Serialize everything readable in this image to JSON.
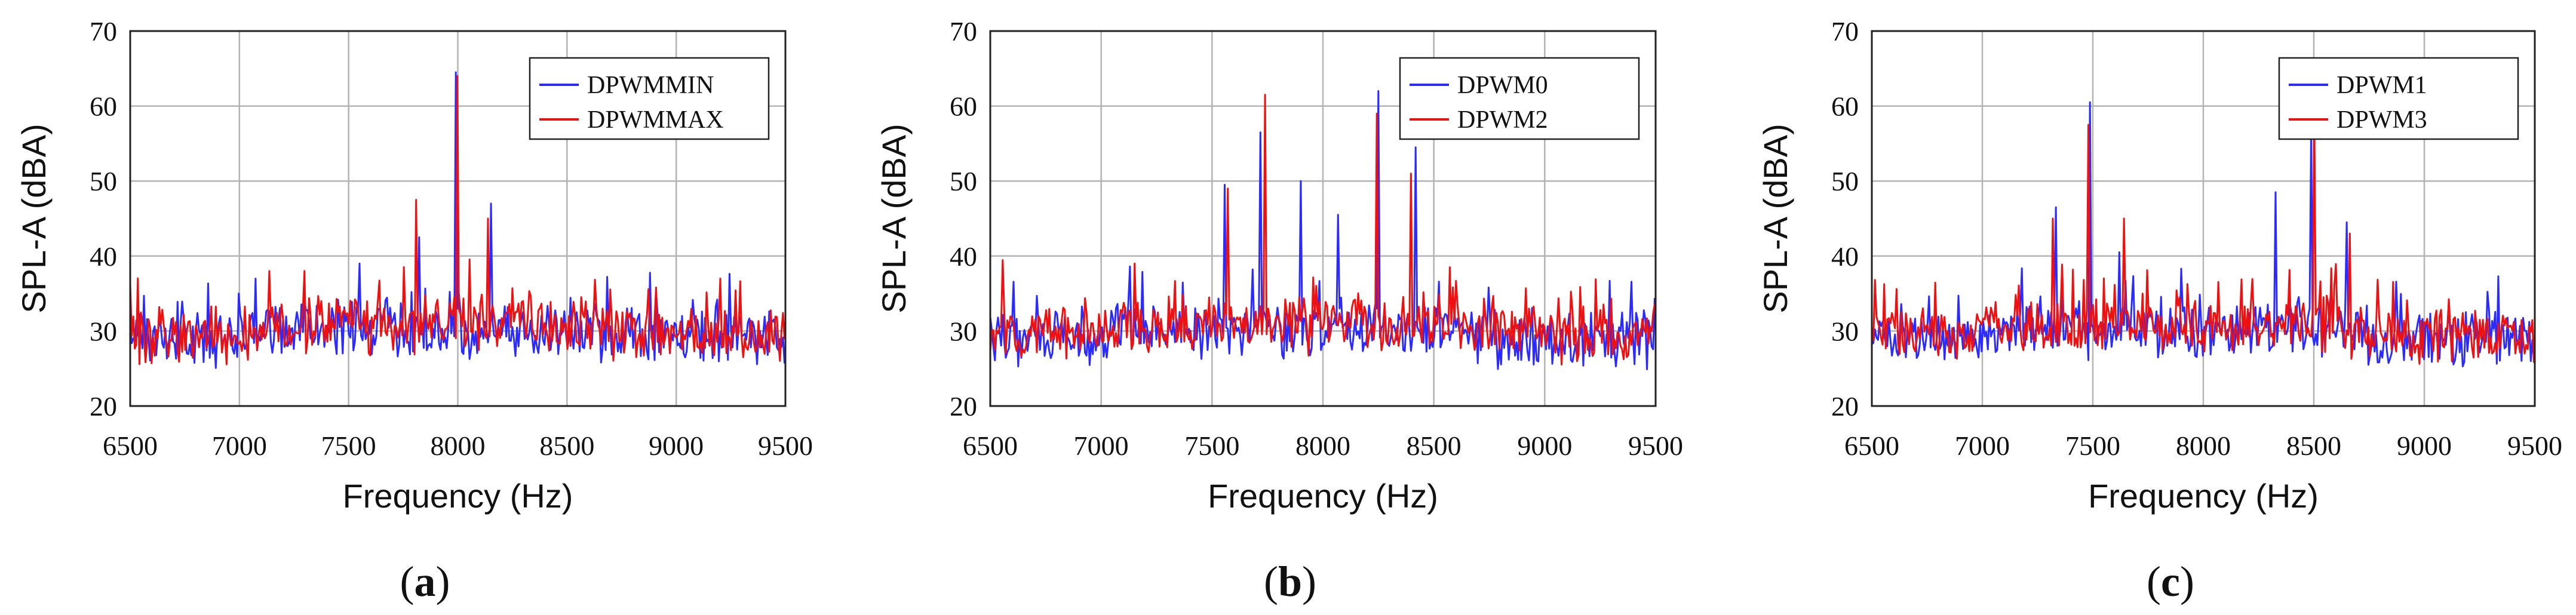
{
  "chart_data": [
    {
      "type": "line",
      "panel": "a",
      "caption_letter": "a",
      "xlabel": "Frequency (Hz)",
      "ylabel": "SPL-A (dBA)",
      "xlim": [
        6500,
        9500
      ],
      "ylim": [
        20,
        70
      ],
      "xticks": [
        6500,
        7000,
        7500,
        8000,
        8500,
        9000,
        9500
      ],
      "yticks": [
        20,
        30,
        40,
        50,
        60,
        70
      ],
      "grid": true,
      "legend_position": "top-right",
      "series": [
        {
          "name": "DPWMMIN",
          "color": "#2b2bff",
          "baseline": 29,
          "peaks": [
            [
              7000,
              35
            ],
            [
              7550,
              39
            ],
            [
              7820,
              42.5
            ],
            [
              7990,
              64.5
            ],
            [
              8150,
              47
            ]
          ]
        },
        {
          "name": "DPWMMAX",
          "color": "#ee1111",
          "baseline": 29.5,
          "peaks": [
            [
              7140,
              38
            ],
            [
              7300,
              38
            ],
            [
              7810,
              47.5
            ],
            [
              8000,
              64
            ],
            [
              8140,
              45
            ],
            [
              9200,
              37
            ]
          ]
        }
      ]
    },
    {
      "type": "line",
      "panel": "b",
      "caption_letter": "b",
      "xlabel": "Frequency (Hz)",
      "ylabel": "SPL-A (dBA)",
      "xlim": [
        6500,
        9500
      ],
      "ylim": [
        20,
        70
      ],
      "xticks": [
        6500,
        7000,
        7500,
        8000,
        8500,
        9000,
        9500
      ],
      "yticks": [
        20,
        30,
        40,
        50,
        60,
        70
      ],
      "grid": true,
      "legend_position": "top-right",
      "series": [
        {
          "name": "DPWM0",
          "color": "#2b2bff",
          "baseline": 29,
          "peaks": [
            [
              7560,
              49.5
            ],
            [
              7720,
              56.5
            ],
            [
              7900,
              50
            ],
            [
              8070,
              45.5
            ],
            [
              8250,
              62
            ],
            [
              8420,
              54.5
            ]
          ]
        },
        {
          "name": "DPWM2",
          "color": "#ee1111",
          "baseline": 29.5,
          "peaks": [
            [
              7150,
              39
            ],
            [
              7570,
              49
            ],
            [
              7740,
              61.5
            ],
            [
              8240,
              59
            ],
            [
              8400,
              51
            ],
            [
              8570,
              38.5
            ]
          ]
        }
      ]
    },
    {
      "type": "line",
      "panel": "c",
      "caption_letter": "c",
      "xlabel": "Frequency (Hz)",
      "ylabel": "SPL-A (dBA)",
      "xlim": [
        6500,
        9500
      ],
      "ylim": [
        20,
        70
      ],
      "xticks": [
        6500,
        7000,
        7500,
        8000,
        8500,
        9000,
        9500
      ],
      "yticks": [
        20,
        30,
        40,
        50,
        60,
        70
      ],
      "grid": true,
      "legend_position": "top-right",
      "series": [
        {
          "name": "DPWM1",
          "color": "#2b2bff",
          "baseline": 29,
          "peaks": [
            [
              7330,
              46.5
            ],
            [
              7490,
              60.5
            ],
            [
              7620,
              40.5
            ],
            [
              8330,
              48.5
            ],
            [
              8490,
              56.5
            ],
            [
              8650,
              44.5
            ]
          ]
        },
        {
          "name": "DPWM3",
          "color": "#ee1111",
          "baseline": 29.5,
          "peaks": [
            [
              7320,
              45
            ],
            [
              7480,
              57.5
            ],
            [
              7640,
              45
            ],
            [
              8500,
              60
            ],
            [
              8660,
              43
            ]
          ]
        }
      ]
    }
  ]
}
